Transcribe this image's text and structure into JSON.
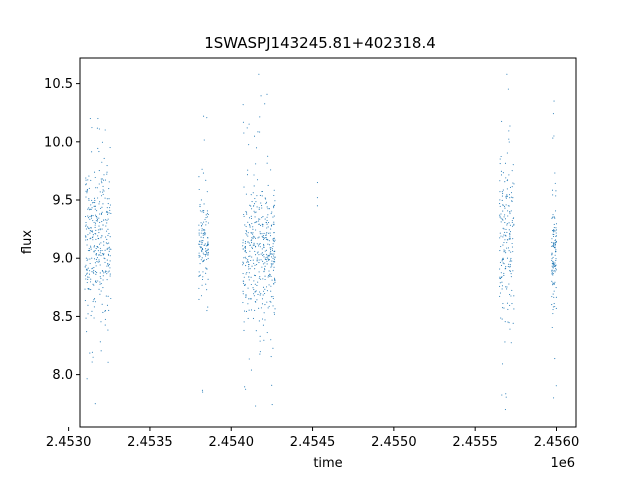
{
  "chart_data": {
    "type": "scatter",
    "title": "1SWASPJ143245.81+402318.4",
    "xlabel": "time",
    "ylabel": "flux",
    "x_offset_label": "1e6",
    "x_scale": 1000000,
    "xlim": [
      2.45307,
      2.45612
    ],
    "ylim": [
      7.55,
      10.72
    ],
    "grid": false,
    "marker_color": "#1f77b4",
    "x_ticks": [
      {
        "value": 2.453,
        "label": "2.4530"
      },
      {
        "value": 2.4535,
        "label": "2.4535"
      },
      {
        "value": 2.454,
        "label": "2.4540"
      },
      {
        "value": 2.4545,
        "label": "2.4545"
      },
      {
        "value": 2.455,
        "label": "2.4550"
      },
      {
        "value": 2.4555,
        "label": "2.4555"
      },
      {
        "value": 2.456,
        "label": "2.4560"
      }
    ],
    "y_ticks": [
      {
        "value": 8.0,
        "label": "8.0"
      },
      {
        "value": 8.5,
        "label": "8.5"
      },
      {
        "value": 9.0,
        "label": "9.0"
      },
      {
        "value": 9.5,
        "label": "9.5"
      },
      {
        "value": 10.0,
        "label": "10.0"
      },
      {
        "value": 10.5,
        "label": "10.5"
      }
    ],
    "clusters": [
      {
        "x_start": 2.4531,
        "x_end": 2.45326,
        "y_min": 7.75,
        "y_max": 10.2,
        "core_mean": 9.15,
        "core_sd": 0.3
      },
      {
        "x_start": 2.4538,
        "x_end": 2.45386,
        "y_min": 7.85,
        "y_max": 10.22,
        "core_mean": 9.15,
        "core_sd": 0.2
      },
      {
        "x_start": 2.45407,
        "x_end": 2.45427,
        "y_min": 7.73,
        "y_max": 10.58,
        "core_mean": 9.05,
        "core_sd": 0.3
      },
      {
        "x_start": 2.45565,
        "x_end": 2.45574,
        "y_min": 7.7,
        "y_max": 10.58,
        "core_mean": 9.15,
        "core_sd": 0.35
      },
      {
        "x_start": 2.45597,
        "x_end": 2.456,
        "y_min": 7.8,
        "y_max": 10.35,
        "core_mean": 9.05,
        "core_sd": 0.22
      }
    ],
    "isolated_points": [
      {
        "x": 2.45453,
        "y": 9.65
      },
      {
        "x": 2.45453,
        "y": 9.52
      },
      {
        "x": 2.45453,
        "y": 9.45
      }
    ]
  }
}
